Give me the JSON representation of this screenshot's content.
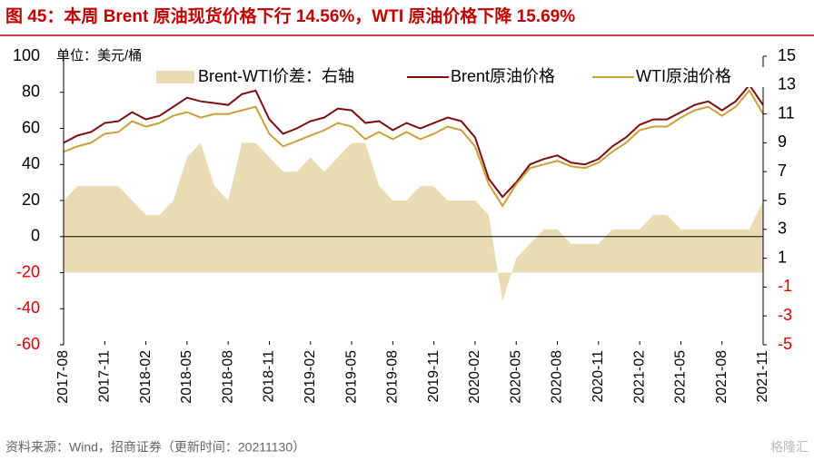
{
  "chart_data": {
    "type": "line",
    "title": "图 45：本周 Brent 原油现货价格下行 14.56%，WTI 原油价格下降 15.69%",
    "unit_label": "单位：美元/桶",
    "source": "资料来源：Wind，招商证券（更新时间：20211130）",
    "watermark": "格隆汇",
    "categories": [
      "2017-08",
      null,
      null,
      "2017-11",
      null,
      null,
      "2018-02",
      null,
      null,
      "2018-05",
      null,
      null,
      "2018-08",
      null,
      null,
      "2018-11",
      null,
      null,
      "2019-02",
      null,
      null,
      "2019-05",
      null,
      null,
      "2019-08",
      null,
      null,
      "2019-11",
      null,
      null,
      "2020-02",
      null,
      null,
      "2020-05",
      null,
      null,
      "2020-08",
      null,
      null,
      "2020-11",
      null,
      null,
      "2021-02",
      null,
      null,
      "2021-05",
      null,
      null,
      "2021-08",
      null,
      null,
      "2021-11"
    ],
    "series": [
      {
        "name": "Brent-WTI价差：右轴",
        "type": "area",
        "axis": "y2",
        "color": "#e9dcb5",
        "values": [
          5,
          6,
          6,
          6,
          6,
          5,
          4,
          4,
          5,
          8,
          9,
          6,
          5,
          9,
          9,
          8,
          7,
          7,
          8,
          7,
          8,
          9,
          9,
          6,
          5,
          5,
          6,
          6,
          5,
          5,
          5,
          4,
          -2,
          1,
          2,
          3,
          3,
          2,
          2,
          2,
          3,
          3,
          3,
          4,
          4,
          3,
          3,
          3,
          3,
          3,
          3,
          5
        ]
      },
      {
        "name": "Brent原油价格",
        "type": "line",
        "color": "#7a0c10",
        "values": [
          52,
          56,
          58,
          63,
          64,
          69,
          65,
          67,
          72,
          77,
          75,
          74,
          73,
          79,
          81,
          65,
          57,
          60,
          64,
          66,
          71,
          70,
          63,
          64,
          59,
          63,
          60,
          63,
          66,
          64,
          55,
          32,
          22,
          30,
          40,
          43,
          45,
          41,
          40,
          43,
          50,
          55,
          62,
          65,
          65,
          69,
          73,
          75,
          70,
          75,
          84,
          73
        ]
      },
      {
        "name": "WTI原油价格",
        "type": "line",
        "color": "#c9a13a",
        "values": [
          47,
          50,
          52,
          57,
          58,
          64,
          61,
          63,
          67,
          69,
          66,
          68,
          68,
          70,
          72,
          57,
          50,
          53,
          56,
          59,
          63,
          61,
          54,
          58,
          54,
          58,
          54,
          57,
          61,
          59,
          50,
          29,
          17,
          29,
          38,
          40,
          42,
          39,
          38,
          41,
          47,
          52,
          59,
          61,
          61,
          66,
          70,
          72,
          67,
          72,
          81,
          68
        ]
      }
    ],
    "ylim": [
      -60,
      100
    ],
    "yticks": [
      -60,
      -40,
      -20,
      0,
      20,
      40,
      60,
      80,
      100
    ],
    "y2lim": [
      -5,
      15
    ],
    "y2ticks": [
      -5,
      -3,
      -1,
      1,
      3,
      5,
      7,
      9,
      11,
      13,
      15
    ],
    "negative_tick_color": "#e00000",
    "title_color": "#c00000",
    "grid": false
  }
}
